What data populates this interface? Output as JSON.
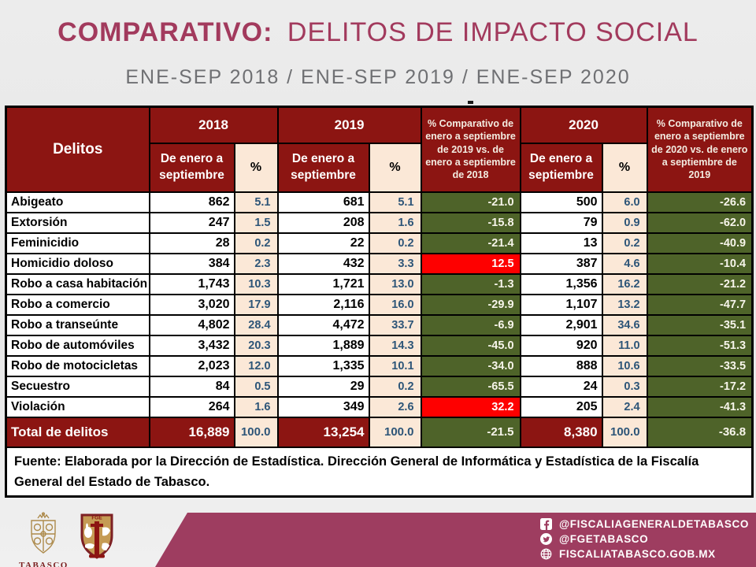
{
  "title": {
    "prefix": "COMPARATIVO:",
    "rest": "DELITOS DE IMPACTO SOCIAL"
  },
  "subtitle": "ENE-SEP 2018 / ENE-SEP 2019 / ENE-SEP 2020",
  "colors": {
    "header_maroon": "#8c1512",
    "cream": "#fbe8d7",
    "green": "#4e6329",
    "red": "#fe0000",
    "pct_text": "#2d5578",
    "title_maroon": "#a23a5d",
    "band_maroon": "#9e3d60"
  },
  "table": {
    "header": {
      "delitos": "Delitos",
      "year2018": "2018",
      "year2019": "2019",
      "year2020": "2020",
      "period": "De enero a septiembre",
      "pct": "%",
      "comp_2019_2018": "% Comparativo de enero a septiembre de 2019 vs. de enero a septiembre de 2018",
      "comp_2020_2019": "% Comparativo de enero a septiembre de 2020 vs. de enero a septiembre de 2019"
    },
    "rows": [
      {
        "delito": "Abigeato",
        "v2018": "862",
        "p2018": "5.1",
        "v2019": "681",
        "p2019": "5.1",
        "c1": "-21.0",
        "v2020": "500",
        "p2020": "6.0",
        "c2": "-26.6"
      },
      {
        "delito": "Extorsión",
        "v2018": "247",
        "p2018": "1.5",
        "v2019": "208",
        "p2019": "1.6",
        "c1": "-15.8",
        "v2020": "79",
        "p2020": "0.9",
        "c2": "-62.0"
      },
      {
        "delito": "Feminicidio",
        "v2018": "28",
        "p2018": "0.2",
        "v2019": "22",
        "p2019": "0.2",
        "c1": "-21.4",
        "v2020": "13",
        "p2020": "0.2",
        "c2": "-40.9"
      },
      {
        "delito": "Homicidio doloso",
        "v2018": "384",
        "p2018": "2.3",
        "v2019": "432",
        "p2019": "3.3",
        "c1": "12.5",
        "v2020": "387",
        "p2020": "4.6",
        "c2": "-10.4"
      },
      {
        "delito": "Robo a casa habitación",
        "v2018": "1,743",
        "p2018": "10.3",
        "v2019": "1,721",
        "p2019": "13.0",
        "c1": "-1.3",
        "v2020": "1,356",
        "p2020": "16.2",
        "c2": "-21.2"
      },
      {
        "delito": "Robo a comercio",
        "v2018": "3,020",
        "p2018": "17.9",
        "v2019": "2,116",
        "p2019": "16.0",
        "c1": "-29.9",
        "v2020": "1,107",
        "p2020": "13.2",
        "c2": "-47.7"
      },
      {
        "delito": "Robo a transeúnte",
        "v2018": "4,802",
        "p2018": "28.4",
        "v2019": "4,472",
        "p2019": "33.7",
        "c1": "-6.9",
        "v2020": "2,901",
        "p2020": "34.6",
        "c2": "-35.1"
      },
      {
        "delito": "Robo de automóviles",
        "v2018": "3,432",
        "p2018": "20.3",
        "v2019": "1,889",
        "p2019": "14.3",
        "c1": "-45.0",
        "v2020": "920",
        "p2020": "11.0",
        "c2": "-51.3"
      },
      {
        "delito": "Robo de motocicletas",
        "v2018": "2,023",
        "p2018": "12.0",
        "v2019": "1,335",
        "p2019": "10.1",
        "c1": "-34.0",
        "v2020": "888",
        "p2020": "10.6",
        "c2": "-33.5"
      },
      {
        "delito": "Secuestro",
        "v2018": "84",
        "p2018": "0.5",
        "v2019": "29",
        "p2019": "0.2",
        "c1": "-65.5",
        "v2020": "24",
        "p2020": "0.3",
        "c2": "-17.2"
      },
      {
        "delito": "Violación",
        "v2018": "264",
        "p2018": "1.6",
        "v2019": "349",
        "p2019": "2.6",
        "c1": "32.2",
        "v2020": "205",
        "p2020": "2.4",
        "c2": "-41.3"
      }
    ],
    "total": {
      "delito": "Total de delitos",
      "v2018": "16,889",
      "p2018": "100.0",
      "v2019": "13,254",
      "p2019": "100.0",
      "c1": "-21.5",
      "v2020": "8,380",
      "p2020": "100.0",
      "c2": "-36.8"
    },
    "source": "Fuente: Elaborada por la Dirección de Estadística. Dirección General de Informática y Estadística de la Fiscalía General del Estado de Tabasco."
  },
  "chart_data": {
    "type": "table",
    "columns": [
      "Delitos",
      "2018 De enero a septiembre",
      "2018 %",
      "2019 De enero a septiembre",
      "2019 %",
      "% Comparativo 2019 vs 2018",
      "2020 De enero a septiembre",
      "2020 %",
      "% Comparativo 2020 vs 2019"
    ],
    "rows": [
      [
        "Abigeato",
        862,
        5.1,
        681,
        5.1,
        -21.0,
        500,
        6.0,
        -26.6
      ],
      [
        "Extorsión",
        247,
        1.5,
        208,
        1.6,
        -15.8,
        79,
        0.9,
        -62.0
      ],
      [
        "Feminicidio",
        28,
        0.2,
        22,
        0.2,
        -21.4,
        13,
        0.2,
        -40.9
      ],
      [
        "Homicidio doloso",
        384,
        2.3,
        432,
        3.3,
        12.5,
        387,
        4.6,
        -10.4
      ],
      [
        "Robo a casa habitación",
        1743,
        10.3,
        1721,
        13.0,
        -1.3,
        1356,
        16.2,
        -21.2
      ],
      [
        "Robo a comercio",
        3020,
        17.9,
        2116,
        16.0,
        -29.9,
        1107,
        13.2,
        -47.7
      ],
      [
        "Robo a transeúnte",
        4802,
        28.4,
        4472,
        33.7,
        -6.9,
        2901,
        34.6,
        -35.1
      ],
      [
        "Robo de automóviles",
        3432,
        20.3,
        1889,
        14.3,
        -45.0,
        920,
        11.0,
        -51.3
      ],
      [
        "Robo de motocicletas",
        2023,
        12.0,
        1335,
        10.1,
        -34.0,
        888,
        10.6,
        -33.5
      ],
      [
        "Secuestro",
        84,
        0.5,
        29,
        0.2,
        -65.5,
        24,
        0.3,
        -17.2
      ],
      [
        "Violación",
        264,
        1.6,
        349,
        2.6,
        32.2,
        205,
        2.4,
        -41.3
      ],
      [
        "Total de delitos",
        16889,
        100.0,
        13254,
        100.0,
        -21.5,
        8380,
        100.0,
        -36.8
      ]
    ]
  },
  "footer": {
    "social": [
      {
        "icon": "facebook-icon",
        "label": "@FISCALIAGENERALDETABASCO"
      },
      {
        "icon": "twitter-icon",
        "label": "@FGETABASCO"
      },
      {
        "icon": "globe-icon",
        "label": "FISCALIATABASCO.GOB.MX"
      }
    ],
    "logo_tabasco_label": "TABASCO",
    "logo_fge_label": "FGE"
  }
}
